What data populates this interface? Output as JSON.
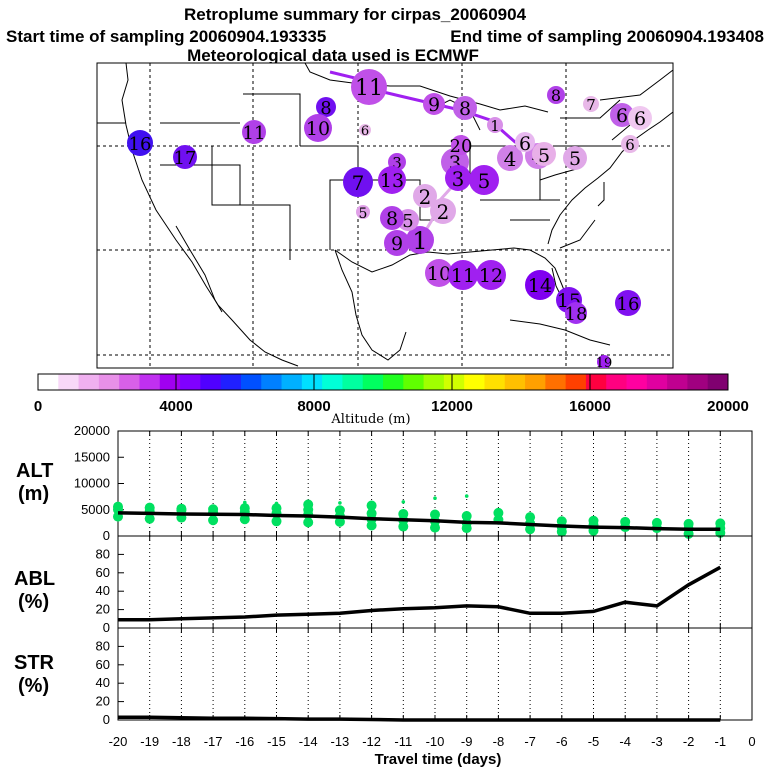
{
  "header": {
    "title": "Retroplume summary for cirpas_20060904",
    "start_label": "Start time of sampling 20060904.193335",
    "end_label": "End time of sampling 20060904.193408",
    "met_label": "Meteorological data used is ECMWF"
  },
  "colorbar": {
    "tick_labels": [
      "0",
      "4000",
      "8000",
      "12000",
      "16000",
      "20000"
    ],
    "label": "Altitude (m)",
    "colors": [
      "#ffffff",
      "#f8d8f8",
      "#f0b0f0",
      "#e890e8",
      "#d860e8",
      "#c030f0",
      "#a000f0",
      "#8000ff",
      "#5000ff",
      "#2020ff",
      "#0050ff",
      "#0080ff",
      "#00b0ff",
      "#00e0ff",
      "#00ffd8",
      "#00ffa0",
      "#00ff60",
      "#20ff20",
      "#60ff00",
      "#a0ff00",
      "#d0ff00",
      "#ffff00",
      "#ffe000",
      "#ffc000",
      "#ffa000",
      "#ff7000",
      "#ff4000",
      "#ff0040",
      "#ff0080",
      "#ff00a0",
      "#e000a0",
      "#c00090",
      "#a00080",
      "#800070"
    ]
  },
  "map": {
    "plume_points": [
      {
        "label": "1",
        "color": "#b040e8"
      },
      {
        "label": "1",
        "color": "#d890e8"
      },
      {
        "label": "2",
        "color": "#e0a8e8"
      },
      {
        "label": "2",
        "color": "#e0a8e8"
      },
      {
        "label": "3",
        "color": "#b040e8"
      },
      {
        "label": "3",
        "color": "#c060e8"
      },
      {
        "label": "3",
        "color": "#a020f0"
      },
      {
        "label": "4",
        "color": "#d080e8"
      },
      {
        "label": "4",
        "color": "#d080e8"
      },
      {
        "label": "5",
        "color": "#a020f0"
      },
      {
        "label": "5",
        "color": "#e0a0e8"
      },
      {
        "label": "5",
        "color": "#d890e8"
      },
      {
        "label": "5",
        "color": "#e8b0e8"
      },
      {
        "label": "5",
        "color": "#e0a8e8"
      },
      {
        "label": "6",
        "color": "#c060e8"
      },
      {
        "label": "6",
        "color": "#e8b8e8"
      },
      {
        "label": "6",
        "color": "#e8b8f0"
      },
      {
        "label": "6",
        "color": "#f0c8f0"
      },
      {
        "label": "6",
        "color": "#e8b8e8"
      },
      {
        "label": "7",
        "color": "#7010f0"
      },
      {
        "label": "7",
        "color": "#e8b8e8"
      },
      {
        "label": "8",
        "color": "#7010f0"
      },
      {
        "label": "8",
        "color": "#b040e8"
      },
      {
        "label": "8",
        "color": "#c060e8"
      },
      {
        "label": "8",
        "color": "#b040e8"
      },
      {
        "label": "9",
        "color": "#b040e8"
      },
      {
        "label": "9",
        "color": "#c050e8"
      },
      {
        "label": "10",
        "color": "#b040e8"
      },
      {
        "label": "10",
        "color": "#c050e8"
      },
      {
        "label": "11",
        "color": "#b040e8"
      },
      {
        "label": "11",
        "color": "#a020f0"
      },
      {
        "label": "11",
        "color": "#c050e8"
      },
      {
        "label": "12",
        "color": "#a020f0"
      },
      {
        "label": "13",
        "color": "#a020f0"
      },
      {
        "label": "14",
        "color": "#8000f0"
      },
      {
        "label": "15",
        "color": "#8010f0"
      },
      {
        "label": "16",
        "color": "#4010f0"
      },
      {
        "label": "16",
        "color": "#8010f0"
      },
      {
        "label": "17",
        "color": "#7010f0"
      },
      {
        "label": "18",
        "color": "#a030f0"
      },
      {
        "label": "19",
        "color": "#a020f0"
      },
      {
        "label": "20",
        "color": "#c050e8"
      }
    ]
  },
  "chart_data": [
    {
      "type": "scatter",
      "name": "ALT",
      "ylabel": "ALT\n(m)",
      "ylabel_lines": [
        "ALT",
        "(m)"
      ],
      "ylim": [
        0,
        20000
      ],
      "yticks": [
        0,
        5000,
        10000,
        15000,
        20000
      ],
      "ytick_labels": [
        "0",
        "5000",
        "10000",
        "15000",
        "20000"
      ],
      "xlim": [
        -20,
        0
      ],
      "series": [
        {
          "name": "median altitude",
          "color": "#000000",
          "x": [
            -20,
            -19,
            -18,
            -17,
            -16,
            -15,
            -14,
            -13,
            -12,
            -11,
            -10,
            -9,
            -8,
            -7,
            -6,
            -5,
            -4,
            -3,
            -2,
            -1
          ],
          "values": [
            4400,
            4300,
            4200,
            4150,
            4100,
            3900,
            3800,
            3600,
            3300,
            3100,
            2900,
            2600,
            2500,
            2200,
            1900,
            1700,
            1600,
            1400,
            1300,
            1300
          ]
        },
        {
          "name": "particle altitudes",
          "color": "#00e060",
          "points": [
            [
              -20,
              5000
            ],
            [
              -20,
              3700
            ],
            [
              -20,
              5600
            ],
            [
              -19,
              4700
            ],
            [
              -19,
              3300
            ],
            [
              -19,
              5400
            ],
            [
              -18,
              4900
            ],
            [
              -18,
              3500
            ],
            [
              -18,
              5200
            ],
            [
              -17,
              4500
            ],
            [
              -17,
              3000
            ],
            [
              -17,
              5100
            ],
            [
              -16,
              4600
            ],
            [
              -16,
              3200
            ],
            [
              -16,
              5300
            ],
            [
              -16,
              6400
            ],
            [
              -15,
              4300
            ],
            [
              -15,
              2800
            ],
            [
              -15,
              5300
            ],
            [
              -15,
              6200
            ],
            [
              -14,
              4100
            ],
            [
              -14,
              2600
            ],
            [
              -14,
              5000
            ],
            [
              -14,
              6000
            ],
            [
              -13,
              3800
            ],
            [
              -13,
              2700
            ],
            [
              -13,
              4900
            ],
            [
              -13,
              6300
            ],
            [
              -12,
              3200
            ],
            [
              -12,
              2000
            ],
            [
              -12,
              4300
            ],
            [
              -12,
              5800
            ],
            [
              -11,
              3000
            ],
            [
              -11,
              1800
            ],
            [
              -11,
              4200
            ],
            [
              -11,
              6500
            ],
            [
              -10,
              2800
            ],
            [
              -10,
              1600
            ],
            [
              -10,
              4100
            ],
            [
              -10,
              7200
            ],
            [
              -9,
              2500
            ],
            [
              -9,
              1500
            ],
            [
              -9,
              3800
            ],
            [
              -9,
              7600
            ],
            [
              -8,
              3100
            ],
            [
              -8,
              4400
            ],
            [
              -7,
              2400
            ],
            [
              -7,
              3600
            ],
            [
              -7,
              1300
            ],
            [
              -6,
              1700
            ],
            [
              -6,
              800
            ],
            [
              -6,
              2800
            ],
            [
              -5,
              2100
            ],
            [
              -5,
              1000
            ],
            [
              -5,
              2900
            ],
            [
              -4,
              1700
            ],
            [
              -4,
              2700
            ],
            [
              -3,
              1500
            ],
            [
              -3,
              2500
            ],
            [
              -2,
              1400
            ],
            [
              -2,
              400
            ],
            [
              -2,
              2300
            ],
            [
              -1,
              1500
            ],
            [
              -1,
              600
            ],
            [
              -1,
              2400
            ]
          ]
        }
      ]
    },
    {
      "type": "line",
      "name": "ABL",
      "ylabel": "ABL\n(%)",
      "ylabel_lines": [
        "ABL",
        "(%)"
      ],
      "ylim": [
        0,
        100
      ],
      "yticks": [
        0,
        20,
        40,
        60,
        80
      ],
      "ytick_labels": [
        "0",
        "20",
        "40",
        "60",
        "80"
      ],
      "xlim": [
        -20,
        0
      ],
      "series": [
        {
          "name": "ABL fraction",
          "color": "#000000",
          "x": [
            -20,
            -19,
            -18,
            -17,
            -16,
            -15,
            -14,
            -13,
            -12,
            -11,
            -10,
            -9,
            -8,
            -7,
            -6,
            -5,
            -4,
            -3,
            -2,
            -1
          ],
          "values": [
            9,
            9,
            10,
            11,
            12,
            14,
            15,
            16,
            19,
            21,
            22,
            24,
            23,
            16,
            16,
            18,
            28,
            24,
            47,
            66
          ]
        }
      ]
    },
    {
      "type": "line",
      "name": "STR",
      "ylabel": "STR\n(%)",
      "ylabel_lines": [
        "STR",
        "(%)"
      ],
      "ylim": [
        0,
        100
      ],
      "yticks": [
        0,
        20,
        40,
        60,
        80
      ],
      "ytick_labels": [
        "0",
        "20",
        "40",
        "60",
        "80"
      ],
      "xlim": [
        -20,
        0
      ],
      "xlabel": "Travel time (days)",
      "xticks": [
        -20,
        -19,
        -18,
        -17,
        -16,
        -15,
        -14,
        -13,
        -12,
        -11,
        -10,
        -9,
        -8,
        -7,
        -6,
        -5,
        -4,
        -3,
        -2,
        -1,
        0
      ],
      "xtick_labels": [
        "-20",
        "-19",
        "-18",
        "-17",
        "-16",
        "-15",
        "-14",
        "-13",
        "-12",
        "-11",
        "-10",
        "-9",
        "-8",
        "-7",
        "-6",
        "-5",
        "-4",
        "-3",
        "-2",
        "-1",
        "0"
      ],
      "series": [
        {
          "name": "STR fraction",
          "color": "#000000",
          "x": [
            -20,
            -19,
            -18,
            -17,
            -16,
            -15,
            -14,
            -13,
            -12,
            -11,
            -10,
            -9,
            -8,
            -7,
            -6,
            -5,
            -4,
            -3,
            -2,
            -1
          ],
          "values": [
            3,
            3,
            2.5,
            2,
            2,
            1.5,
            1,
            1,
            0.5,
            0,
            0,
            0,
            0,
            0,
            0,
            0,
            0,
            0,
            0,
            0
          ]
        }
      ]
    }
  ]
}
